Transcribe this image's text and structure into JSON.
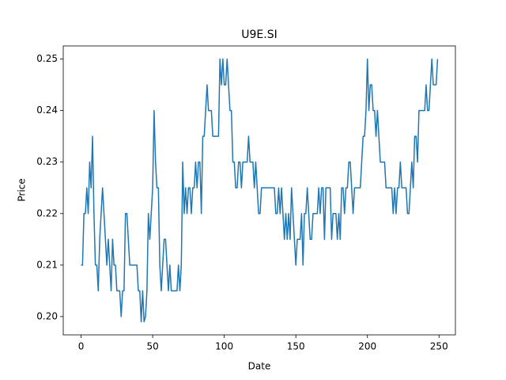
{
  "chart_data": {
    "type": "line",
    "title": "U9E.SI",
    "x_label": "Date",
    "y_label": "Price",
    "color": "#1f77b4",
    "x": [
      0,
      1,
      2,
      3,
      4,
      5,
      6,
      7,
      8,
      9,
      10,
      11,
      12,
      13,
      14,
      15,
      16,
      17,
      18,
      19,
      20,
      21,
      22,
      23,
      24,
      25,
      26,
      27,
      28,
      29,
      30,
      31,
      32,
      33,
      34,
      35,
      36,
      37,
      38,
      39,
      40,
      41,
      42,
      43,
      44,
      45,
      46,
      47,
      48,
      49,
      50,
      51,
      52,
      53,
      54,
      55,
      56,
      57,
      58,
      59,
      60,
      61,
      62,
      63,
      64,
      65,
      66,
      67,
      68,
      69,
      70,
      71,
      72,
      73,
      74,
      75,
      76,
      77,
      78,
      79,
      80,
      81,
      82,
      83,
      84,
      85,
      86,
      87,
      88,
      89,
      90,
      91,
      92,
      93,
      94,
      95,
      96,
      97,
      98,
      99,
      100,
      101,
      102,
      103,
      104,
      105,
      106,
      107,
      108,
      109,
      110,
      111,
      112,
      113,
      114,
      115,
      116,
      117,
      118,
      119,
      120,
      121,
      122,
      123,
      124,
      125,
      126,
      127,
      128,
      129,
      130,
      131,
      132,
      133,
      134,
      135,
      136,
      137,
      138,
      139,
      140,
      141,
      142,
      143,
      144,
      145,
      146,
      147,
      148,
      149,
      150,
      151,
      152,
      153,
      154,
      155,
      156,
      157,
      158,
      159,
      160,
      161,
      162,
      163,
      164,
      165,
      166,
      167,
      168,
      169,
      170,
      171,
      172,
      173,
      174,
      175,
      176,
      177,
      178,
      179,
      180,
      181,
      182,
      183,
      184,
      185,
      186,
      187,
      188,
      189,
      190,
      191,
      192,
      193,
      194,
      195,
      196,
      197,
      198,
      199,
      200,
      201,
      202,
      203,
      204,
      205,
      206,
      207,
      208,
      209,
      210,
      211,
      212,
      213,
      214,
      215,
      216,
      217,
      218,
      219,
      220,
      221,
      222,
      223,
      224,
      225,
      226,
      227,
      228,
      229,
      230,
      231,
      232,
      233,
      234,
      235,
      236,
      237,
      238,
      239,
      240,
      241,
      242,
      243,
      244,
      245,
      246,
      247,
      248,
      249
    ],
    "values": [
      0.21,
      0.21,
      0.22,
      0.22,
      0.225,
      0.22,
      0.23,
      0.225,
      0.235,
      0.22,
      0.21,
      0.21,
      0.205,
      0.215,
      0.22,
      0.225,
      0.22,
      0.215,
      0.21,
      0.215,
      0.21,
      0.205,
      0.215,
      0.21,
      0.21,
      0.205,
      0.205,
      0.205,
      0.2,
      0.205,
      0.205,
      0.22,
      0.22,
      0.215,
      0.21,
      0.21,
      0.21,
      0.21,
      0.21,
      0.21,
      0.205,
      0.205,
      0.199,
      0.205,
      0.199,
      0.2,
      0.205,
      0.22,
      0.215,
      0.22,
      0.225,
      0.24,
      0.23,
      0.225,
      0.225,
      0.21,
      0.205,
      0.21,
      0.215,
      0.215,
      0.21,
      0.205,
      0.21,
      0.205,
      0.205,
      0.205,
      0.205,
      0.205,
      0.21,
      0.205,
      0.21,
      0.23,
      0.22,
      0.225,
      0.22,
      0.225,
      0.225,
      0.22,
      0.225,
      0.225,
      0.23,
      0.225,
      0.23,
      0.23,
      0.22,
      0.235,
      0.235,
      0.24,
      0.245,
      0.24,
      0.24,
      0.24,
      0.235,
      0.235,
      0.235,
      0.235,
      0.235,
      0.25,
      0.245,
      0.25,
      0.245,
      0.245,
      0.25,
      0.245,
      0.24,
      0.24,
      0.23,
      0.23,
      0.225,
      0.225,
      0.23,
      0.23,
      0.225,
      0.23,
      0.23,
      0.23,
      0.23,
      0.235,
      0.23,
      0.23,
      0.23,
      0.225,
      0.23,
      0.225,
      0.22,
      0.22,
      0.225,
      0.225,
      0.225,
      0.225,
      0.225,
      0.225,
      0.225,
      0.225,
      0.225,
      0.225,
      0.22,
      0.22,
      0.225,
      0.22,
      0.225,
      0.22,
      0.215,
      0.22,
      0.215,
      0.22,
      0.215,
      0.225,
      0.22,
      0.215,
      0.21,
      0.215,
      0.215,
      0.215,
      0.22,
      0.21,
      0.22,
      0.22,
      0.225,
      0.22,
      0.215,
      0.215,
      0.22,
      0.22,
      0.22,
      0.22,
      0.225,
      0.22,
      0.225,
      0.225,
      0.215,
      0.225,
      0.225,
      0.225,
      0.225,
      0.215,
      0.22,
      0.22,
      0.22,
      0.215,
      0.22,
      0.215,
      0.225,
      0.225,
      0.22,
      0.225,
      0.225,
      0.23,
      0.23,
      0.225,
      0.22,
      0.225,
      0.225,
      0.225,
      0.225,
      0.225,
      0.23,
      0.235,
      0.235,
      0.24,
      0.25,
      0.24,
      0.245,
      0.245,
      0.24,
      0.24,
      0.235,
      0.24,
      0.235,
      0.23,
      0.23,
      0.23,
      0.23,
      0.225,
      0.225,
      0.225,
      0.225,
      0.225,
      0.22,
      0.225,
      0.22,
      0.225,
      0.225,
      0.23,
      0.225,
      0.225,
      0.225,
      0.225,
      0.22,
      0.22,
      0.225,
      0.23,
      0.225,
      0.235,
      0.235,
      0.23,
      0.24,
      0.24,
      0.24,
      0.24,
      0.24,
      0.245,
      0.24,
      0.24,
      0.245,
      0.25,
      0.245,
      0.245,
      0.245,
      0.25
    ],
    "xlim": [
      -12.45,
      261.45
    ],
    "xticks": [
      0,
      50,
      100,
      150,
      200,
      250
    ],
    "ylim": [
      0.19645,
      0.25255
    ],
    "yticks": [
      {
        "value": 0.2,
        "label": "0.20"
      },
      0.21,
      0.22,
      0.23,
      0.24,
      0.25
    ]
  }
}
